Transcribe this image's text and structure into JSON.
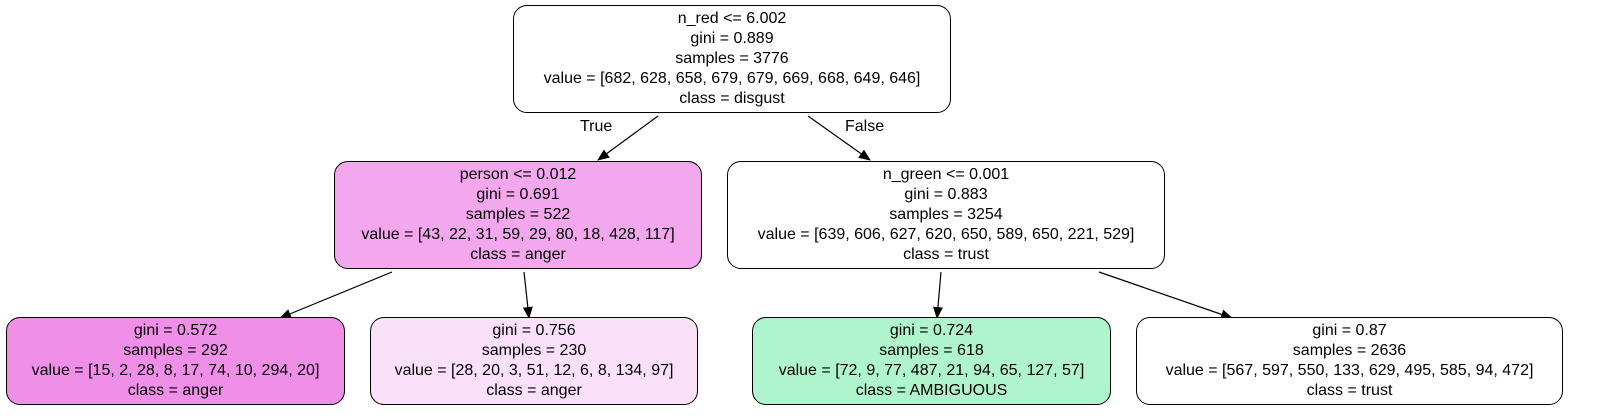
{
  "nodes": [
    {
      "id": "n0",
      "split": "n_red <= 6.002",
      "gini": "gini = 0.889",
      "samples": "samples = 3776",
      "value": "value = [682, 628, 658, 679, 679, 669, 668, 649, 646]",
      "class": "class = disgust",
      "fill": "#ffffff"
    },
    {
      "id": "n1",
      "split": "person <= 0.012",
      "gini": "gini = 0.691",
      "samples": "samples = 522",
      "value": "value = [43, 22, 31, 59, 29, 80, 18, 428, 117]",
      "class": "class = anger",
      "fill": "#f3a8ee"
    },
    {
      "id": "n2",
      "split": "n_green <= 0.001",
      "gini": "gini = 0.883",
      "samples": "samples = 3254",
      "value": "value = [639, 606, 627, 620, 650, 589, 650, 221, 529]",
      "class": "class = trust",
      "fill": "#ffffff"
    },
    {
      "id": "n3",
      "split": "",
      "gini": "gini = 0.572",
      "samples": "samples = 292",
      "value": "value = [15, 2, 28, 8, 17, 74, 10, 294, 20]",
      "class": "class = anger",
      "fill": "#f08fe8"
    },
    {
      "id": "n4",
      "split": "",
      "gini": "gini = 0.756",
      "samples": "samples = 230",
      "value": "value = [28, 20, 3, 51, 12, 6, 8, 134, 97]",
      "class": "class = anger",
      "fill": "#fae0f8"
    },
    {
      "id": "n5",
      "split": "",
      "gini": "gini = 0.724",
      "samples": "samples = 618",
      "value": "value = [72, 9, 77, 487, 21, 94, 65, 127, 57]",
      "class": "class = AMBIGUOUS",
      "fill": "#aef4cc"
    },
    {
      "id": "n6",
      "split": "",
      "gini": "gini = 0.87",
      "samples": "samples = 2636",
      "value": "value = [567, 597, 550, 133, 629, 495, 585, 94, 472]",
      "class": "class = trust",
      "fill": "#ffffff"
    }
  ],
  "edges": [
    {
      "from": "n0",
      "to": "n1",
      "label": "True"
    },
    {
      "from": "n0",
      "to": "n2",
      "label": "False"
    },
    {
      "from": "n1",
      "to": "n3",
      "label": ""
    },
    {
      "from": "n1",
      "to": "n4",
      "label": ""
    },
    {
      "from": "n2",
      "to": "n5",
      "label": ""
    },
    {
      "from": "n2",
      "to": "n6",
      "label": ""
    }
  ]
}
